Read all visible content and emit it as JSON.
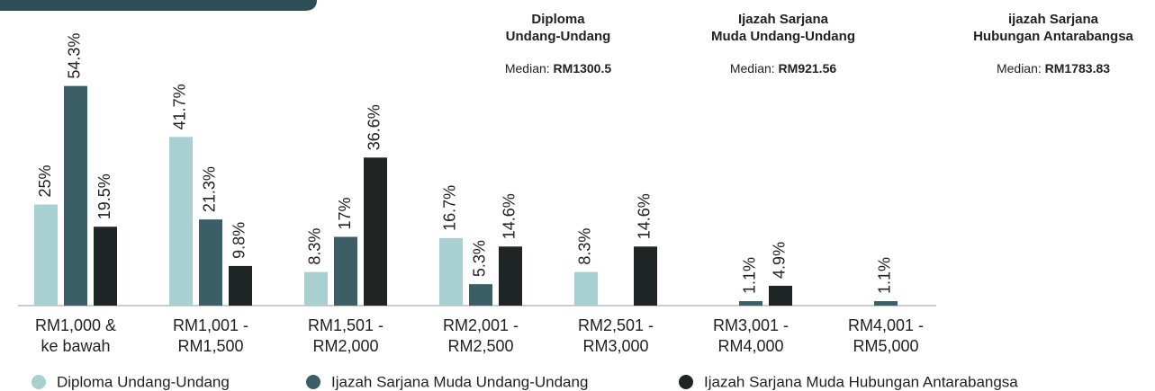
{
  "chart_data": {
    "type": "bar",
    "categories": [
      [
        "RM1,000 &",
        "ke bawah"
      ],
      [
        "RM1,001 -",
        "RM1,500"
      ],
      [
        "RM1,501 -",
        "RM2,000"
      ],
      [
        "RM2,001 -",
        "RM2,500"
      ],
      [
        "RM2,501 -",
        "RM3,000"
      ],
      [
        "RM3,001 -",
        "RM4,000"
      ],
      [
        "RM4,001 -",
        "RM5,000"
      ]
    ],
    "series": [
      {
        "name": "Diploma Undang-Undang",
        "color": "#a8cfd1",
        "values": [
          25,
          41.7,
          8.3,
          16.7,
          8.3,
          null,
          null
        ],
        "value_labels": [
          "25%",
          "41.7%",
          "8.3%",
          "16.7%",
          "8.3%",
          null,
          null
        ]
      },
      {
        "name": "Ijazah Sarjana Muda Undang-Undang",
        "color": "#3b5e67",
        "values": [
          54.3,
          21.3,
          17,
          5.3,
          null,
          1.1,
          1.1
        ],
        "value_labels": [
          "54.3%",
          "21.3%",
          "17%",
          "5.3%",
          null,
          "1.1%",
          "1.1%"
        ]
      },
      {
        "name": "Ijazah Sarjana Muda Hubungan Antarabangsa",
        "color": "#1f2425",
        "values": [
          19.5,
          9.8,
          36.6,
          14.6,
          14.6,
          4.9,
          null
        ],
        "value_labels": [
          "19.5%",
          "9.8%",
          "36.6%",
          "14.6%",
          "14.6%",
          "4.9%",
          null
        ]
      }
    ],
    "ylim": [
      0,
      60
    ],
    "annotations": [
      {
        "title": [
          "Diploma",
          "Undang-Undang"
        ],
        "median_label": "Median:",
        "median_value": "RM1300.5"
      },
      {
        "title": [
          "Ijazah Sarjana",
          "Muda Undang-Undang"
        ],
        "median_label": "Median:",
        "median_value": "RM921.56"
      },
      {
        "title": [
          "ijazah Sarjana",
          "Hubungan Antarabangsa"
        ],
        "median_label": "Median:",
        "median_value": "RM1783.83"
      }
    ]
  }
}
